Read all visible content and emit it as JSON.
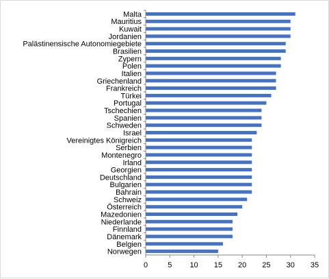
{
  "chart_data": {
    "type": "bar",
    "orientation": "horizontal",
    "categories": [
      "Malta",
      "Mauritius",
      "Kuwait",
      "Jordanien",
      "Palästinensische Autonomiegebiete",
      "Brasilien",
      "Zypern",
      "Polen",
      "Italien",
      "Griechenland",
      "Frankreich",
      "Türkei",
      "Portugal",
      "Tschechien",
      "Spanien",
      "Schweden",
      "Israel",
      "Vereinigtes Königreich",
      "Serbien",
      "Montenegro",
      "Irland",
      "Georgien",
      "Deutschland",
      "Bulgarien",
      "Bahrain",
      "Schweiz",
      "Österreich",
      "Mazedonien",
      "Niederlande",
      "Finnland",
      "Dänemark",
      "Belgien",
      "Norwegen"
    ],
    "values": [
      31,
      30,
      30,
      30,
      29,
      29,
      28,
      28,
      27,
      27,
      27,
      26,
      25,
      24,
      24,
      24,
      23,
      22,
      22,
      22,
      22,
      22,
      22,
      22,
      22,
      21,
      20,
      19,
      18,
      18,
      18,
      16,
      15
    ],
    "xticks": [
      "0",
      "5",
      "10",
      "15",
      "20",
      "25",
      "30",
      "35"
    ],
    "xlim": [
      0,
      35
    ],
    "bar_color": "#4472c4",
    "axis_color": "#868686",
    "grid": false,
    "legend": "none",
    "title": "",
    "xlabel": "",
    "ylabel": ""
  }
}
